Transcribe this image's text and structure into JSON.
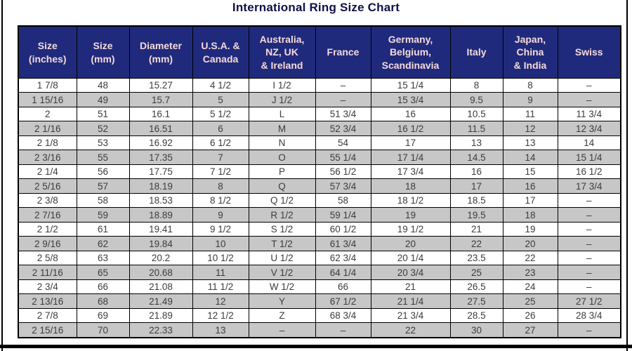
{
  "title": "International Ring Size Chart",
  "colors": {
    "title_text": "#101048",
    "header_bg": "#1F2A7C",
    "header_text": "#F6D9DA",
    "row_bg": "#FFFFFF",
    "row_alt_bg": "#C7C7C7",
    "cell_text": "#3C3C3C",
    "border": "#000000",
    "frame": "#000000"
  },
  "chart_data": {
    "type": "table",
    "title": "International Ring Size Chart",
    "layout": {
      "striped": true,
      "header_rows": 1,
      "grid": true,
      "legend": "none"
    },
    "columns": [
      "Size\n(inches)",
      "Size\n(mm)",
      "Diameter\n(mm)",
      "U.S.A. &\nCanada",
      "Australia,\nNZ, UK\n& Ireland",
      "France",
      "Germany,\nBelgium,\nScandinavia",
      "Italy",
      "Japan,\nChina\n& India",
      "Swiss"
    ],
    "rows": [
      [
        "1  7/8",
        "48",
        "15.27",
        "4 1/2",
        "I 1/2",
        "–",
        "15 1/4",
        "8",
        "8",
        "–"
      ],
      [
        "1 15/16",
        "49",
        "15.7",
        "5",
        "J 1/2",
        "–",
        "15 3/4",
        "9.5",
        "9",
        "–"
      ],
      [
        "2",
        "51",
        "16.1",
        "5 1/2",
        "L",
        "51 3/4",
        "16",
        "10.5",
        "11",
        "11 3/4"
      ],
      [
        "2  1/16",
        "52",
        "16.51",
        "6",
        "M",
        "52 3/4",
        "16 1/2",
        "11.5",
        "12",
        "12 3/4"
      ],
      [
        "2  1/8",
        "53",
        "16.92",
        "6 1/2",
        "N",
        "54",
        "17",
        "13",
        "13",
        "14"
      ],
      [
        "2  3/16",
        "55",
        "17.35",
        "7",
        "O",
        "55 1/4",
        "17 1/4",
        "14.5",
        "14",
        "15 1/4"
      ],
      [
        "2  1/4",
        "56",
        "17.75",
        "7 1/2",
        "P",
        "56 1/2",
        "17 3/4",
        "16",
        "15",
        "16 1/2"
      ],
      [
        "2  5/16",
        "57",
        "18.19",
        "8",
        "Q",
        "57 3/4",
        "18",
        "17",
        "16",
        "17 3/4"
      ],
      [
        "2  3/8",
        "58",
        "18.53",
        "8 1/2",
        "Q 1/2",
        "58",
        "18 1/2",
        "18.5",
        "17",
        "–"
      ],
      [
        "2  7/16",
        "59",
        "18.89",
        "9",
        "R 1/2",
        "59 1/4",
        "19",
        "19.5",
        "18",
        "–"
      ],
      [
        "2  1/2",
        "61",
        "19.41",
        "9 1/2",
        "S 1/2",
        "60 1/2",
        "19 1/2",
        "21",
        "19",
        "–"
      ],
      [
        "2  9/16",
        "62",
        "19.84",
        "10",
        "T 1/2",
        "61 3/4",
        "20",
        "22",
        "20",
        "–"
      ],
      [
        "2  5/8",
        "63",
        "20.2",
        "10 1/2",
        "U 1/2",
        "62 3/4",
        "20 1/4",
        "23.5",
        "22",
        "–"
      ],
      [
        "2 11/16",
        "65",
        "20.68",
        "11",
        "V 1/2",
        "64 1/4",
        "20 3/4",
        "25",
        "23",
        "–"
      ],
      [
        "2  3/4",
        "66",
        "21.08",
        "11 1/2",
        "W 1/2",
        "66",
        "21",
        "26.5",
        "24",
        "–"
      ],
      [
        "2 13/16",
        "68",
        "21.49",
        "12",
        "Y",
        "67 1/2",
        "21 1/4",
        "27.5",
        "25",
        "27 1/2"
      ],
      [
        "2  7/8",
        "69",
        "21.89",
        "12 1/2",
        "Z",
        "68 3/4",
        "21 3/4",
        "28.5",
        "26",
        "28 3/4"
      ],
      [
        "2 15/16",
        "70",
        "22.33",
        "13",
        "–",
        "–",
        "22",
        "30",
        "27",
        "–"
      ]
    ]
  }
}
